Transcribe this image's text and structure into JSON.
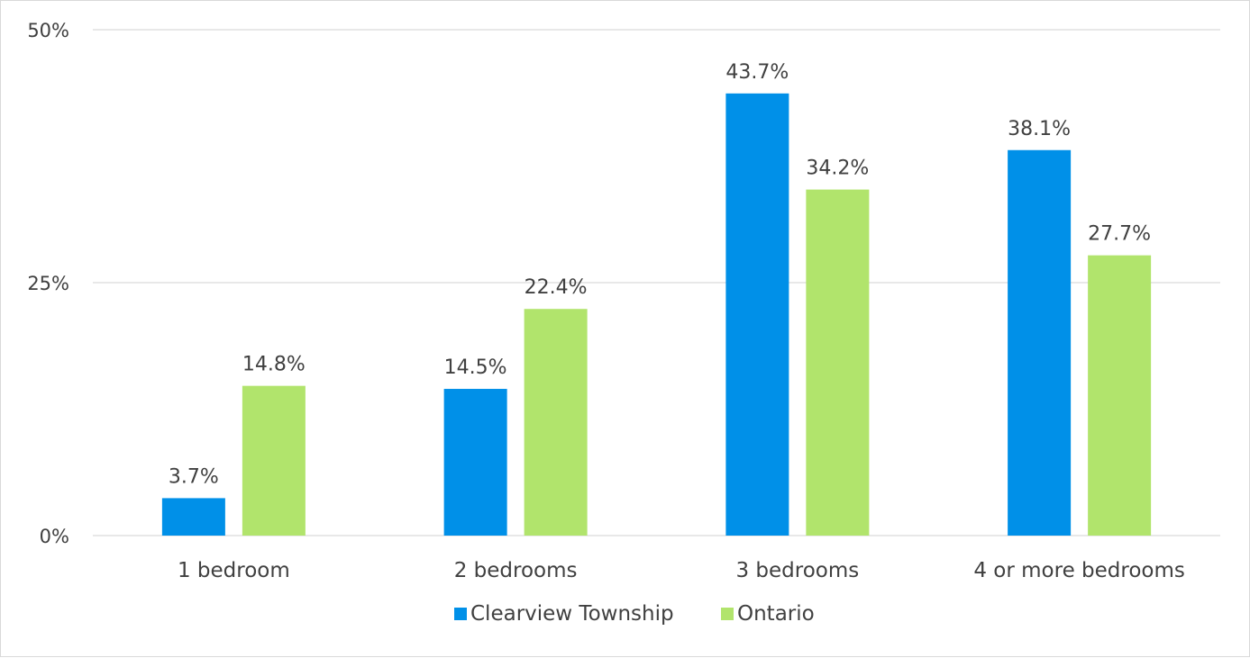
{
  "chart_data": {
    "type": "bar",
    "categories": [
      "1 bedroom",
      "2 bedrooms",
      "3 bedrooms",
      "4 or more bedrooms"
    ],
    "series": [
      {
        "name": "Clearview Township",
        "values": [
          3.7,
          14.5,
          43.7,
          38.1
        ],
        "labels": [
          "3.7%",
          "14.5%",
          "43.7%",
          "38.1%"
        ],
        "color": "#0090e8"
      },
      {
        "name": "Ontario",
        "values": [
          14.8,
          22.4,
          34.2,
          27.7
        ],
        "labels": [
          "14.8%",
          "22.4%",
          "34.2%",
          "27.7%"
        ],
        "color": "#b1e46c"
      }
    ],
    "ylim": [
      0,
      50
    ],
    "yticks": [
      0,
      25,
      50
    ],
    "ytick_labels": [
      "0%",
      "25%",
      "50%"
    ],
    "grid": true,
    "legend": "bottom-center",
    "gridline_color": "#d9d9d9"
  }
}
